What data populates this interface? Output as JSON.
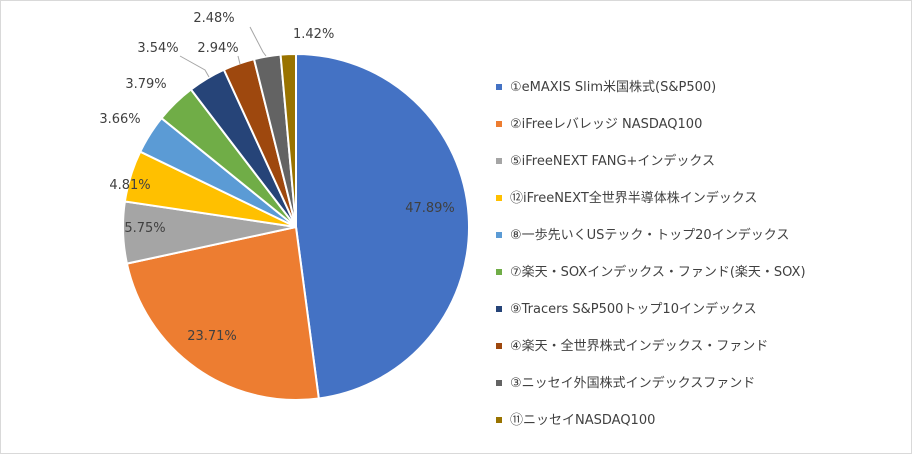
{
  "chart_data": {
    "type": "pie",
    "title": "",
    "legend_position": "right",
    "slices": [
      {
        "label": "①eMAXIS Slim米国株式(S&P500)",
        "value": 47.89,
        "value_label": "47.89%",
        "color": "#4472C4"
      },
      {
        "label": "②iFreeレバレッジ NASDAQ100",
        "value": 23.71,
        "value_label": "23.71%",
        "color": "#ED7D31"
      },
      {
        "label": "⑤iFreeNEXT FANG+インデックス",
        "value": 5.75,
        "value_label": "5.75%",
        "color": "#A5A5A5"
      },
      {
        "label": "⑫iFreeNEXT全世界半導体株インデックス",
        "value": 4.81,
        "value_label": "4.81%",
        "color": "#FFC000"
      },
      {
        "label": "⑧一歩先いくUSテック・トップ20インデックス",
        "value": 3.66,
        "value_label": "3.66%",
        "color": "#5B9BD5"
      },
      {
        "label": "⑦楽天・SOXインデックス・ファンド(楽天・SOX)",
        "value": 3.79,
        "value_label": "3.79%",
        "color": "#70AD47"
      },
      {
        "label": "⑨Tracers S&P500トップ10インデックス",
        "value": 3.54,
        "value_label": "3.54%",
        "color": "#264478"
      },
      {
        "label": "④楽天・全世界株式インデックス・ファンド",
        "value": 2.94,
        "value_label": "2.94%",
        "color": "#9E480E"
      },
      {
        "label": "③ニッセイ外国株式インデックスファンド",
        "value": 2.48,
        "value_label": "2.48%",
        "color": "#636363"
      },
      {
        "label": "⑪ニッセイNASDAQ100",
        "value": 1.42,
        "value_label": "1.42%",
        "color": "#997300"
      }
    ]
  }
}
